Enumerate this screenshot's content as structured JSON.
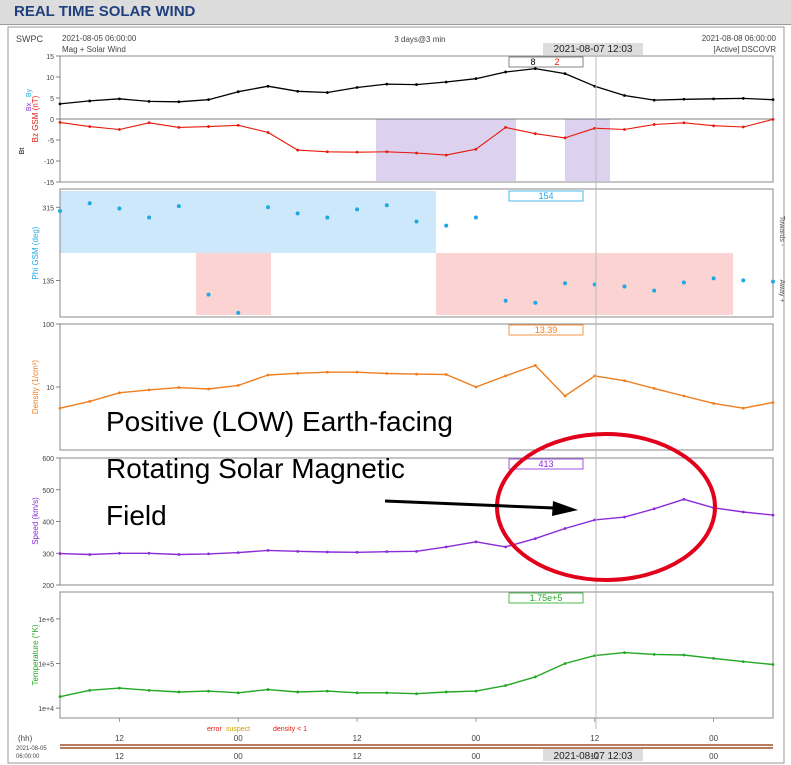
{
  "page": {
    "title": "REAL TIME SOLAR WIND"
  },
  "top_meta": {
    "source": "SWPC",
    "start": "2021-08-05 06:00:00",
    "subtitle": "Mag + Solar Wind",
    "span": "3 days@3 min",
    "cursor_time": "2021-08-07 12:03",
    "end": "2021-08-08 06:00:00",
    "status": "[Active] DSCOVR"
  },
  "annotation": {
    "line1": "Positive (LOW) Earth-facing",
    "line2": "Rotating Solar Magnetic",
    "line3": "Field"
  },
  "flags": {
    "error": "error",
    "suspect": "suspect",
    "density": "density < 1"
  },
  "bottom_axis": {
    "hh": "(hh)",
    "date_line1": "2021-08-05",
    "date_line2": "06:00:00",
    "hour_labels": [
      "12",
      "00",
      "12",
      "00",
      "12",
      "00"
    ],
    "cursor_time": "2021-08-07 12:03"
  },
  "colors": {
    "bt": "#000000",
    "bz": "#e8190b",
    "phi": "#1ea9e3",
    "density": "#f07d1e",
    "speed": "#8b2bd8",
    "temp": "#22a822",
    "toward_fill": "#cce8fa",
    "away_fill": "#fbd3d3",
    "bz_fill": "#dcd2ef",
    "annotation_circle": "#e3001a",
    "annotation_arrow": "#000000"
  },
  "chart_data": [
    {
      "type": "line",
      "ylabel": "Bz GSM (nT)",
      "legend": [
        "Bt",
        "Bz",
        "Bx",
        "By"
      ],
      "ylim": [
        -15,
        15
      ],
      "yticks": [
        15,
        10,
        5,
        0,
        -5,
        -10,
        -15
      ],
      "ytick_labels": [
        "15",
        "10",
        "5",
        "0",
        "-5",
        "-10",
        "-15"
      ],
      "readout": [
        "8",
        "2"
      ],
      "x_hours": [
        0,
        3,
        6,
        9,
        12,
        15,
        18,
        21,
        24,
        27,
        30,
        33,
        36,
        39,
        42,
        45,
        48,
        51,
        54,
        57,
        60,
        63,
        66,
        69,
        72
      ],
      "series": [
        {
          "name": "Bt",
          "values": [
            3.6,
            4.3,
            4.8,
            4.2,
            4.1,
            4.6,
            6.5,
            7.8,
            6.6,
            6.3,
            7.5,
            8.3,
            8.2,
            8.8,
            9.6,
            11.2,
            12.0,
            10.8,
            7.8,
            5.6,
            4.5,
            4.7,
            4.8,
            4.9,
            4.6
          ]
        },
        {
          "name": "Bz",
          "values": [
            -0.8,
            -1.8,
            -2.5,
            -0.9,
            -2.0,
            -1.8,
            -1.5,
            -3.2,
            -7.4,
            -7.8,
            -7.9,
            -7.8,
            -8.1,
            -8.6,
            -7.2,
            -2.0,
            -3.5,
            -4.5,
            -2.2,
            -2.5,
            -1.3,
            -0.9,
            -1.6,
            -1.9,
            -0.1
          ]
        }
      ]
    },
    {
      "type": "scatter",
      "ylabel": "Phi GSM (deg)",
      "ylim": [
        45,
        360
      ],
      "yticks": [
        315,
        135
      ],
      "ytick_labels": [
        "315",
        "135"
      ],
      "readout": "154",
      "right_labels": [
        "Towards -",
        "Away +"
      ],
      "x_hours": [
        0,
        3,
        6,
        9,
        12,
        15,
        18,
        21,
        24,
        27,
        30,
        33,
        36,
        39,
        42,
        45,
        48,
        51,
        54,
        57,
        60,
        63,
        66,
        69,
        72
      ],
      "values": [
        306,
        325,
        312,
        290,
        318,
        100,
        55,
        315,
        300,
        290,
        310,
        320,
        280,
        270,
        290,
        85,
        80,
        128,
        125,
        120,
        110,
        130,
        140,
        135,
        132
      ]
    },
    {
      "type": "line",
      "ylabel": "Density (1/cm³)",
      "yscale": "log",
      "ylim": [
        1,
        100
      ],
      "yticks": [
        100,
        10
      ],
      "ytick_labels": [
        "100",
        "10"
      ],
      "readout": "13.39",
      "x_hours": [
        0,
        3,
        6,
        9,
        12,
        15,
        18,
        21,
        24,
        27,
        30,
        33,
        36,
        39,
        42,
        45,
        48,
        51,
        54,
        57,
        60,
        63,
        66,
        69,
        72
      ],
      "values": [
        4.6,
        5.9,
        8.1,
        9.0,
        9.8,
        9.3,
        10.6,
        15.5,
        16.5,
        17.2,
        17.2,
        16.4,
        16.0,
        15.8,
        10.0,
        15.0,
        22.0,
        7.2,
        15.0,
        12.6,
        9.5,
        7.2,
        5.5,
        4.6,
        5.7
      ]
    },
    {
      "type": "line",
      "ylabel": "Speed (km/s)",
      "ylim": [
        200,
        600
      ],
      "yticks": [
        600,
        500,
        400,
        300,
        200
      ],
      "ytick_labels": [
        "600",
        "500",
        "400",
        "300",
        "200"
      ],
      "readout": "413",
      "x_hours": [
        0,
        3,
        6,
        9,
        12,
        15,
        18,
        21,
        24,
        27,
        30,
        33,
        36,
        39,
        42,
        45,
        48,
        51,
        54,
        57,
        60,
        63,
        66,
        69,
        72
      ],
      "values": [
        299,
        296,
        300,
        300,
        296,
        298,
        302,
        309,
        306,
        304,
        303,
        305,
        306,
        320,
        336,
        320,
        346,
        378,
        405,
        414,
        440,
        470,
        443,
        430,
        420
      ]
    },
    {
      "type": "line",
      "ylabel": "Temperature (°K)",
      "yscale": "log",
      "ylim": [
        6000,
        4000000
      ],
      "yticks": [
        1000000,
        100000,
        10000
      ],
      "ytick_labels": [
        "1e+6",
        "1e+5",
        "1e+4"
      ],
      "readout": "1.75e+5",
      "x_hours": [
        0,
        3,
        6,
        9,
        12,
        15,
        18,
        21,
        24,
        27,
        30,
        33,
        36,
        39,
        42,
        45,
        48,
        51,
        54,
        57,
        60,
        63,
        66,
        69,
        72
      ],
      "values": [
        18000,
        25000,
        28000,
        25000,
        23000,
        24000,
        22000,
        26000,
        23000,
        24000,
        22000,
        22000,
        21000,
        23000,
        24000,
        32000,
        50000,
        100000,
        150000,
        175000,
        160000,
        155000,
        130000,
        110000,
        95000
      ]
    }
  ]
}
